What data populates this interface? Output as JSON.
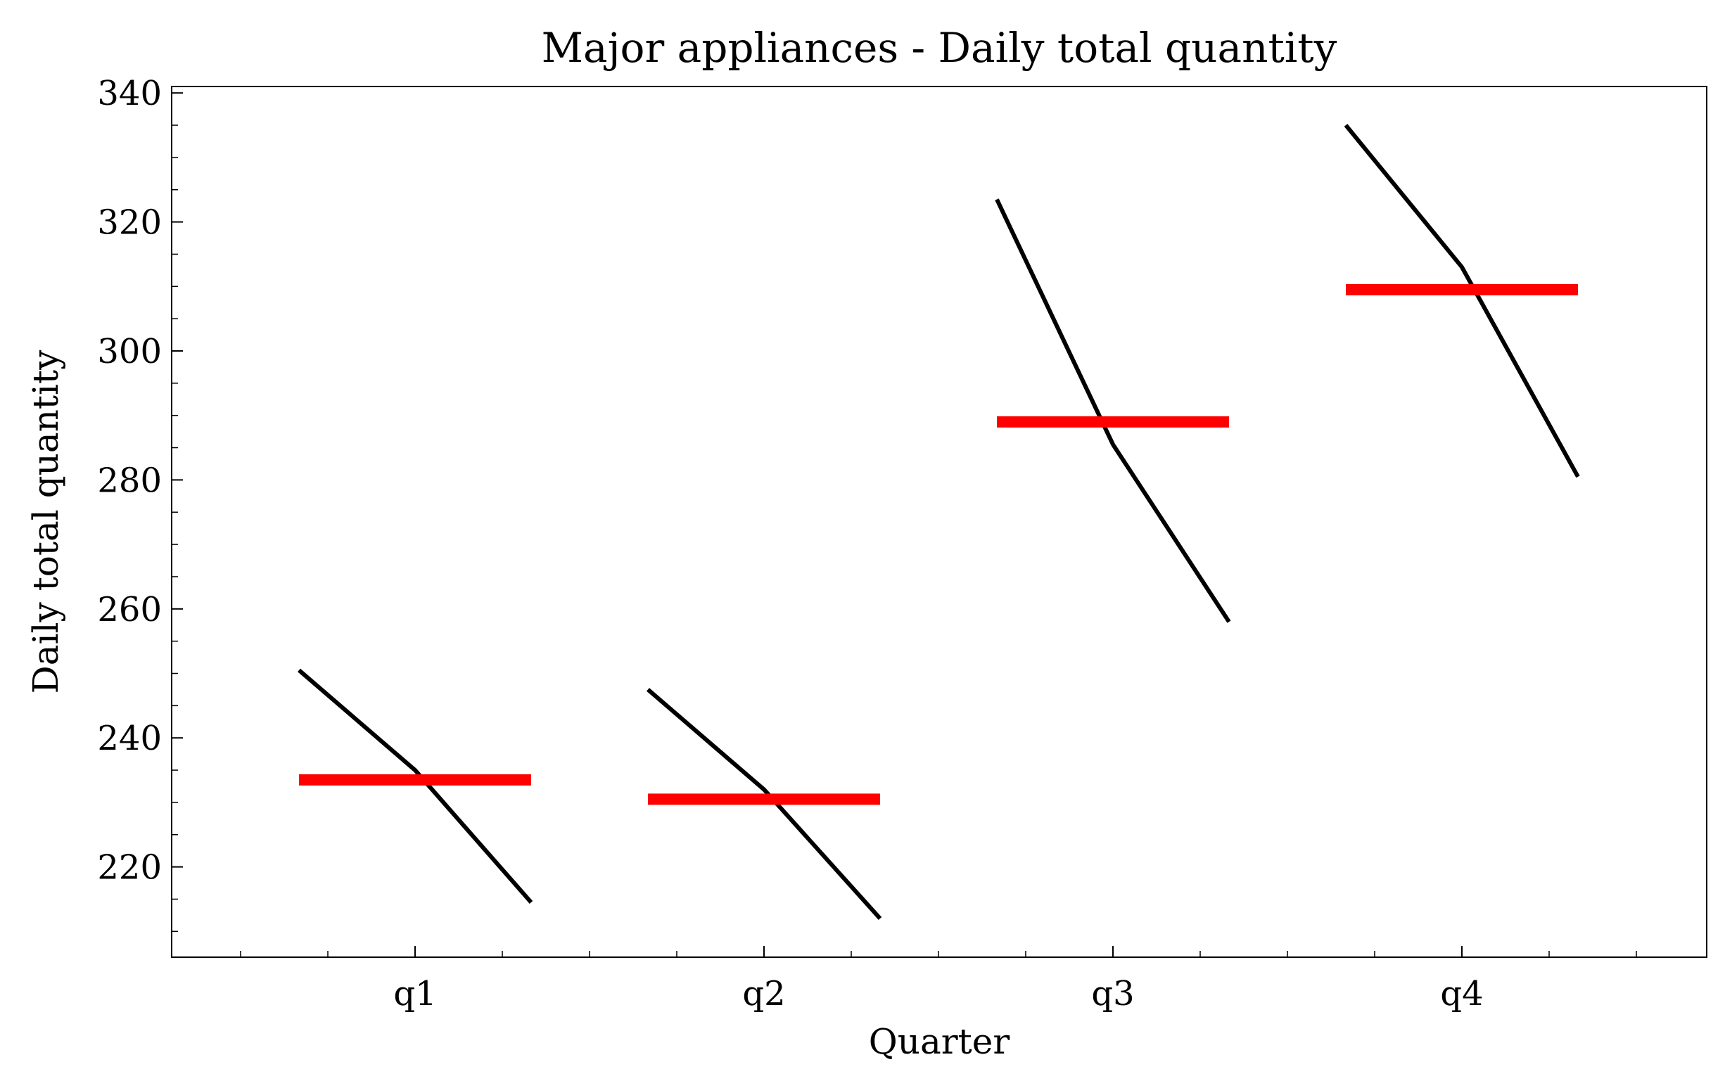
{
  "chart_data": {
    "type": "line",
    "title": "Major appliances - Daily total quantity",
    "xlabel": "Quarter",
    "ylabel": "Daily total quantity",
    "categories": [
      "q1",
      "q2",
      "q3",
      "q4"
    ],
    "ylim": [
      206,
      341
    ],
    "yticks": [
      220,
      240,
      260,
      280,
      300,
      320,
      340
    ],
    "series": [
      {
        "role": "subseries",
        "color": "#000000",
        "segments": [
          [
            250.5,
            235.0,
            214.5
          ],
          [
            247.5,
            232.0,
            212.0
          ],
          [
            323.5,
            285.5,
            258.0
          ],
          [
            335.0,
            313.0,
            280.5
          ]
        ]
      },
      {
        "role": "mean",
        "color": "#ff0000",
        "values": [
          233.5,
          230.5,
          289.0,
          309.5
        ]
      }
    ],
    "grid": false,
    "legend": "none"
  }
}
